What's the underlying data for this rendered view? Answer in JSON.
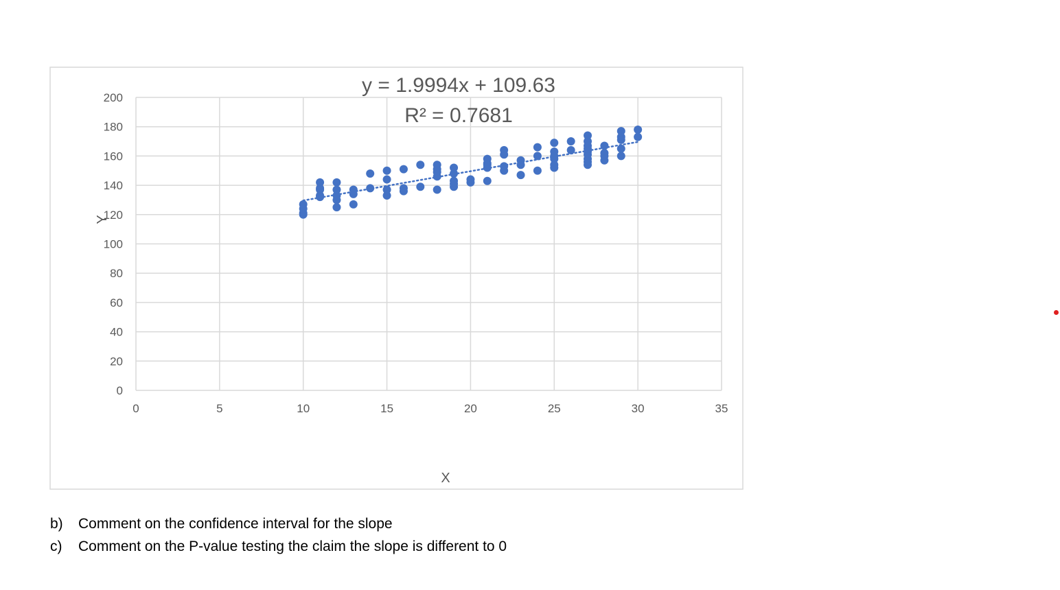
{
  "chart_data": {
    "type": "scatter",
    "equation": "y = 1.9994x + 109.63",
    "r_squared": "R² = 0.7681",
    "xlabel": "X",
    "ylabel": "Y",
    "xlim": [
      0,
      35
    ],
    "ylim": [
      0,
      200
    ],
    "x_ticks": [
      "0",
      "5",
      "10",
      "15",
      "20",
      "25",
      "30",
      "35"
    ],
    "y_ticks": [
      "0",
      "20",
      "40",
      "60",
      "80",
      "100",
      "120",
      "140",
      "160",
      "180",
      "200"
    ],
    "grid": true,
    "trendline": {
      "style": "dotted",
      "slope": 1.9994,
      "intercept": 109.63,
      "x_range": [
        10,
        30
      ]
    },
    "series": [
      {
        "x": [
          10,
          10,
          10,
          10,
          11,
          11,
          11,
          11,
          11,
          12,
          12,
          12,
          12,
          12,
          13,
          13,
          13,
          14,
          14,
          15,
          15,
          15,
          15,
          16,
          16,
          16,
          17,
          17,
          18,
          18,
          18,
          18,
          18,
          19,
          19,
          19,
          19,
          19,
          20,
          20,
          21,
          21,
          21,
          21,
          21,
          22,
          22,
          22,
          22,
          23,
          23,
          23,
          24,
          24,
          24,
          25,
          25,
          25,
          25,
          25,
          25,
          26,
          26,
          27,
          27,
          27,
          27,
          27,
          27,
          27,
          27,
          27,
          28,
          28,
          28,
          28,
          29,
          29,
          29,
          29,
          29,
          30,
          30
        ],
        "y": [
          127,
          124,
          121,
          120,
          142,
          138,
          137,
          133,
          132,
          142,
          137,
          133,
          130,
          125,
          137,
          134,
          127,
          148,
          138,
          150,
          144,
          137,
          133,
          151,
          138,
          136,
          154,
          139,
          154,
          151,
          149,
          146,
          137,
          152,
          148,
          143,
          141,
          139,
          144,
          142,
          158,
          155,
          154,
          152,
          143,
          164,
          161,
          153,
          150,
          157,
          154,
          147,
          166,
          160,
          150,
          169,
          163,
          160,
          158,
          154,
          152,
          170,
          164,
          174,
          170,
          167,
          165,
          163,
          161,
          158,
          156,
          154,
          167,
          162,
          160,
          157,
          177,
          173,
          171,
          165,
          160,
          178,
          173
        ],
        "color": "#4472c4"
      }
    ]
  },
  "questions": [
    {
      "letter": "b)",
      "text": "Comment on the confidence interval for the slope"
    },
    {
      "letter": "c)",
      "text": "Comment on the P-value testing the claim the slope is different to 0"
    }
  ],
  "colors": {
    "marker": "#4472c4",
    "trendline": "#4472c4",
    "grid": "#d9d9d9",
    "axis_text": "#595959",
    "stray_dot": "#e02020"
  }
}
